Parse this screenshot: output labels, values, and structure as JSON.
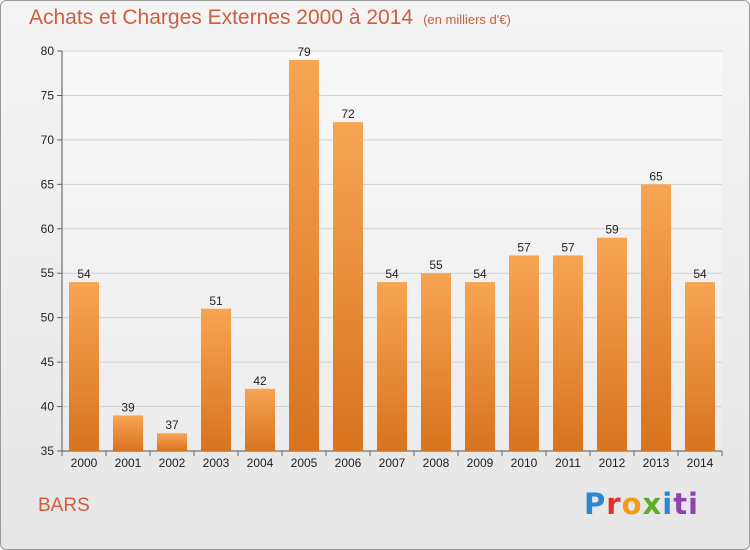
{
  "header": {
    "title": "Achats et Charges Externes 2000 à 2014",
    "subtitle": "(en milliers d'€)"
  },
  "footer": {
    "commune": "BARS",
    "logo": [
      "P",
      "r",
      "o",
      "x",
      "i",
      "ti"
    ]
  },
  "colors": {
    "bar_top": "#f7a553",
    "bar_bottom": "#d8731f",
    "title": "#cf5e3f"
  },
  "chart_data": {
    "type": "bar",
    "categories": [
      "2000",
      "2001",
      "2002",
      "2003",
      "2004",
      "2005",
      "2006",
      "2007",
      "2008",
      "2009",
      "2010",
      "2011",
      "2012",
      "2013",
      "2014"
    ],
    "values": [
      54,
      39,
      37,
      51,
      42,
      79,
      72,
      54,
      55,
      54,
      57,
      57,
      59,
      65,
      54
    ],
    "title": "Achats et Charges Externes 2000 à 2014",
    "ylim": [
      35,
      80
    ],
    "yticks": [
      35,
      40,
      45,
      50,
      55,
      60,
      65,
      70,
      75,
      80
    ],
    "grid": true
  }
}
